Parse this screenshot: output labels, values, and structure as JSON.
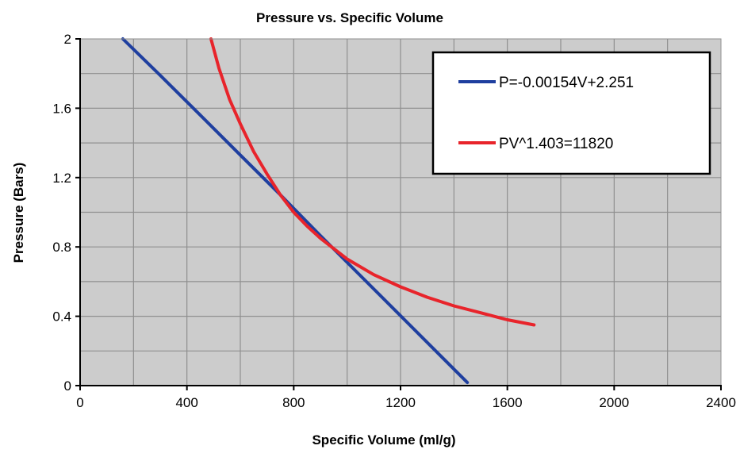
{
  "chart_data": {
    "type": "line",
    "title": "Pressure vs. Specific Volume",
    "xlabel": "Specific Volume (ml/g)",
    "ylabel": "Pressure (Bars)",
    "xlim": [
      0,
      2400
    ],
    "ylim": [
      0,
      2
    ],
    "x_ticks": [
      0,
      400,
      800,
      1200,
      1600,
      2000,
      2400
    ],
    "x_tick_labels": [
      "0",
      "400",
      "800",
      "1200",
      "1600",
      "2000",
      "2400"
    ],
    "y_ticks": [
      0,
      0.4,
      0.8,
      1.2,
      1.6,
      2
    ],
    "y_tick_labels": [
      "0",
      "0.4",
      "0.8",
      "1.2",
      "1.6",
      "2"
    ],
    "grid": true,
    "plot_background": "#cccccc",
    "legend_position": "top-right",
    "series": [
      {
        "name": "P=-0.00154V+2.251",
        "color": "#1f3f9f",
        "x": [
          160,
          300,
          450,
          600,
          750,
          900,
          1050,
          1200,
          1350,
          1450
        ],
        "y": [
          2.0,
          1.79,
          1.56,
          1.33,
          1.1,
          0.865,
          0.634,
          0.403,
          0.172,
          0.018
        ]
      },
      {
        "name": "PV^1.403=11820",
        "color": "#e8242b",
        "x": [
          490,
          520,
          560,
          600,
          650,
          700,
          750,
          800,
          850,
          900,
          1000,
          1100,
          1200,
          1300,
          1400,
          1500,
          1600,
          1700
        ],
        "y": [
          2.0,
          1.83,
          1.65,
          1.51,
          1.35,
          1.22,
          1.1,
          1.0,
          0.92,
          0.85,
          0.73,
          0.64,
          0.57,
          0.51,
          0.46,
          0.42,
          0.38,
          0.35
        ]
      }
    ]
  }
}
